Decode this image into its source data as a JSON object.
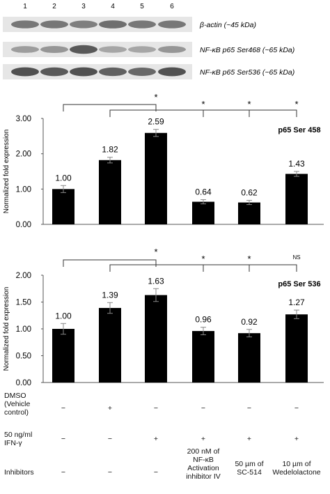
{
  "blot": {
    "lanes": [
      "1",
      "2",
      "3",
      "4",
      "5",
      "6"
    ],
    "rows": [
      {
        "label": "β-actin (~45 kDa)",
        "intensity": [
          0.55,
          0.55,
          0.5,
          0.6,
          0.55,
          0.55
        ]
      },
      {
        "label": "NF-κB p65 Ser468 (~65 kDa)",
        "intensity": [
          0.3,
          0.35,
          0.75,
          0.25,
          0.25,
          0.35
        ]
      },
      {
        "label": "NF-κB p65 Ser536 (~65 kDa)",
        "intensity": [
          0.8,
          0.75,
          0.8,
          0.7,
          0.65,
          0.8
        ]
      }
    ]
  },
  "chart_data": [
    {
      "type": "bar",
      "title": "p65 Ser 458",
      "ylabel": "Normalized fold expression",
      "ylim": [
        0,
        3
      ],
      "yticks": [
        "0.00",
        "1.00",
        "2.00",
        "3.00"
      ],
      "values": [
        1.0,
        1.82,
        2.59,
        0.64,
        0.62,
        1.43
      ],
      "errors": [
        0.1,
        0.08,
        0.1,
        0.06,
        0.06,
        0.07
      ],
      "labels": [
        "1.00",
        "1.82",
        "2.59",
        "0.64",
        "0.62",
        "1.43"
      ],
      "significance": [
        "*",
        "*",
        "*",
        "*"
      ]
    },
    {
      "type": "bar",
      "title": "p65 Ser 536",
      "ylabel": "Normalized fold expression",
      "ylim": [
        0,
        2
      ],
      "yticks": [
        "0.00",
        "0.50",
        "1.00",
        "1.50",
        "2.00"
      ],
      "values": [
        1.0,
        1.39,
        1.63,
        0.96,
        0.92,
        1.27
      ],
      "errors": [
        0.1,
        0.1,
        0.12,
        0.07,
        0.07,
        0.08
      ],
      "labels": [
        "1.00",
        "1.39",
        "1.63",
        "0.96",
        "0.92",
        "1.27"
      ],
      "significance": [
        "*",
        "*",
        "*",
        "NS"
      ]
    }
  ],
  "conditions": {
    "dmso_label": "DMSO\n(Vehicle\ncontrol)",
    "dmso": [
      "−",
      "+",
      "−",
      "−",
      "−",
      "−"
    ],
    "ifn_label": "50 ng/ml\nIFN-γ",
    "ifn": [
      "−",
      "−",
      "+",
      "+",
      "+",
      "+"
    ],
    "inhib_label": "Inhibitors",
    "inhib": [
      "−",
      "−",
      "−",
      "200 nM of\nNF-κB\nActivation\ninhibitor IV",
      "50 µm of\nSC-514",
      "10 µm of\nWedelolactone"
    ]
  }
}
